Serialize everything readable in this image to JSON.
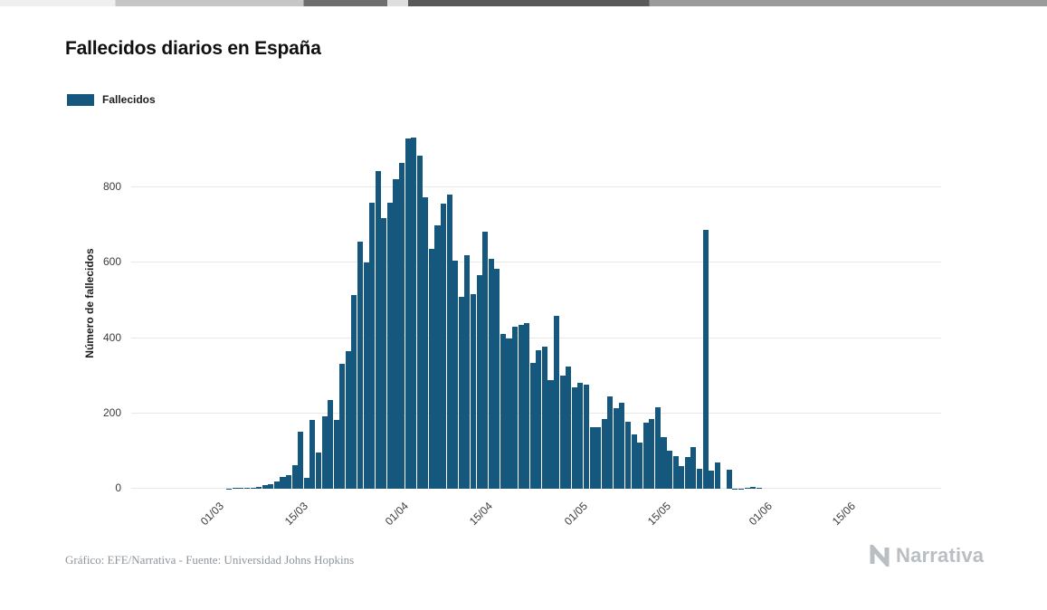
{
  "page": {
    "title": "Fallecidos diarios en España",
    "legend": {
      "label": "Fallecidos",
      "color": "#15577d"
    },
    "y_axis_label": "Número de fallecidos",
    "footer_caption": "Gráfico: EFE/Narrativa - Fuente: Universidad Johns Hopkins",
    "brand": "Narrativa"
  },
  "chart_data": {
    "type": "bar",
    "title": "Fallecidos diarios en España",
    "series_name": "Fallecidos",
    "bar_color": "#15577d",
    "xlabel": "",
    "ylabel": "Número de fallecidos",
    "ylim": [
      0,
      960
    ],
    "y_ticks": [
      0,
      200,
      400,
      600,
      800
    ],
    "grid": "horizontal",
    "legend_position": "top-left",
    "x_tick_labels": [
      "01/03",
      "15/03",
      "01/04",
      "15/04",
      "01/05",
      "15/05",
      "01/06",
      "15/06"
    ],
    "x_tick_indices": [
      14,
      28,
      45,
      59,
      75,
      89,
      106,
      120
    ],
    "dates": [
      "16/02",
      "17/02",
      "18/02",
      "19/02",
      "20/02",
      "21/02",
      "22/02",
      "23/02",
      "24/02",
      "25/02",
      "26/02",
      "27/02",
      "28/02",
      "29/02",
      "01/03",
      "02/03",
      "03/03",
      "04/03",
      "05/03",
      "06/03",
      "07/03",
      "08/03",
      "09/03",
      "10/03",
      "11/03",
      "12/03",
      "13/03",
      "14/03",
      "15/03",
      "16/03",
      "17/03",
      "18/03",
      "19/03",
      "20/03",
      "21/03",
      "22/03",
      "23/03",
      "24/03",
      "25/03",
      "26/03",
      "27/03",
      "28/03",
      "29/03",
      "30/03",
      "31/03",
      "01/04",
      "02/04",
      "03/04",
      "04/04",
      "05/04",
      "06/04",
      "07/04",
      "08/04",
      "09/04",
      "10/04",
      "11/04",
      "12/04",
      "13/04",
      "14/04",
      "15/04",
      "16/04",
      "17/04",
      "18/04",
      "19/04",
      "20/04",
      "21/04",
      "22/04",
      "23/04",
      "24/04",
      "25/04",
      "26/04",
      "27/04",
      "28/04",
      "29/04",
      "30/04",
      "01/05",
      "02/05",
      "03/05",
      "04/05",
      "05/05",
      "06/05",
      "07/05",
      "08/05",
      "09/05",
      "10/05",
      "11/05",
      "12/05",
      "13/05",
      "14/05",
      "15/05",
      "16/05",
      "17/05",
      "18/05",
      "19/05",
      "20/05",
      "21/05",
      "22/05",
      "23/05",
      "24/05",
      "25/05",
      "26/05",
      "27/05",
      "28/05",
      "29/05",
      "30/05",
      "31/05",
      "01/06",
      "02/06",
      "03/06",
      "04/06",
      "05/06",
      "06/06",
      "07/06",
      "08/06",
      "09/06",
      "10/06",
      "11/06",
      "12/06",
      "13/06",
      "14/06",
      "15/06",
      "16/06",
      "17/06",
      "18/06",
      "19/06",
      "20/06",
      "21/06",
      "22/06",
      "23/06",
      "24/06",
      "25/06",
      "26/06",
      "27/06",
      "28/06",
      "29/06",
      "30/06"
    ],
    "values": [
      0,
      0,
      0,
      0,
      0,
      0,
      0,
      0,
      0,
      0,
      0,
      0,
      0,
      0,
      0,
      0,
      1,
      2,
      3,
      2,
      3,
      5,
      10,
      12,
      19,
      31,
      37,
      63,
      152,
      30,
      183,
      97,
      193,
      235,
      182,
      332,
      365,
      514,
      656,
      601,
      760,
      844,
      718,
      760,
      821,
      864,
      930,
      932,
      884,
      774,
      637,
      700,
      757,
      780,
      605,
      510,
      619,
      517,
      567,
      682,
      610,
      585,
      410,
      399,
      430,
      435,
      440,
      335,
      367,
      378,
      288,
      460,
      301,
      325,
      268,
      281,
      276,
      164,
      164,
      185,
      244,
      213,
      229,
      179,
      143,
      123,
      176,
      184,
      217,
      138,
      102,
      87,
      59,
      83,
      110,
      52,
      688,
      48,
      70,
      0,
      50,
      1,
      1,
      2,
      4,
      2,
      0,
      0,
      0,
      0,
      0,
      0,
      0,
      0,
      0,
      0,
      0,
      0,
      0,
      0,
      0,
      0,
      0,
      0,
      0,
      0,
      0,
      0,
      0,
      0,
      0,
      0,
      0,
      0,
      0,
      0
    ]
  }
}
